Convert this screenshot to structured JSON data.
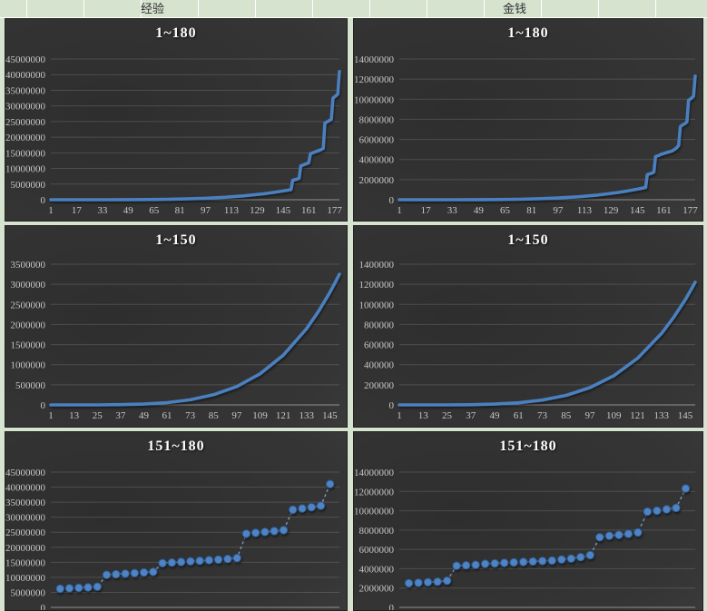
{
  "header": {
    "experience_label": "经验",
    "money_label": "金钱"
  },
  "style": {
    "sheet_background": "#d6e3cf",
    "sheet_gridline": "#ffffff",
    "chart_background_dark": "#303030",
    "gridline_color": "rgba(255,255,255,0.14)",
    "axis_line_color": "rgba(255,255,255,0.45)",
    "tick_text_color": "#c7c7c7",
    "title_color": "#ffffff",
    "line_color": "#4a80c0",
    "marker_fill": "#4f84c4",
    "marker_stroke": "#2f5c94",
    "dash_line_color": "#86a9d4"
  },
  "chart_data": [
    {
      "title": "1~180",
      "column": "经验",
      "type": "line",
      "xlim": [
        1,
        180
      ],
      "ylim": [
        0,
        45000000
      ],
      "x_ticks": [
        1,
        17,
        33,
        49,
        65,
        81,
        97,
        113,
        129,
        145,
        161,
        177
      ],
      "y_ticks": [
        0,
        5000000,
        10000000,
        15000000,
        20000000,
        25000000,
        30000000,
        35000000,
        40000000,
        45000000
      ],
      "x": [
        1,
        13,
        25,
        37,
        49,
        61,
        73,
        85,
        97,
        109,
        121,
        133,
        139,
        145,
        148,
        150,
        151,
        152,
        153,
        154,
        155,
        156,
        157,
        158,
        159,
        160,
        161,
        162,
        163,
        164,
        165,
        166,
        167,
        168,
        169,
        170,
        171,
        172,
        173,
        174,
        175,
        176,
        177,
        178,
        179,
        180
      ],
      "y": [
        0,
        100,
        1000,
        6000,
        21000,
        57000,
        127000,
        252000,
        457000,
        772000,
        1236000,
        1892000,
        2310000,
        2790000,
        3060000,
        3250000,
        6200000,
        6350000,
        6500000,
        6650000,
        6850000,
        10800000,
        11000000,
        11200000,
        11400000,
        11600000,
        11800000,
        14700000,
        14900000,
        15100000,
        15300000,
        15500000,
        15700000,
        15900000,
        16100000,
        16400000,
        24500000,
        24800000,
        25100000,
        25400000,
        25700000,
        32500000,
        32900000,
        33300000,
        33800000,
        41000000
      ]
    },
    {
      "title": "1~180",
      "column": "金钱",
      "type": "line",
      "xlim": [
        1,
        180
      ],
      "ylim": [
        0,
        14000000
      ],
      "x_ticks": [
        1,
        17,
        33,
        49,
        65,
        81,
        97,
        113,
        129,
        145,
        161,
        177
      ],
      "y_ticks": [
        0,
        2000000,
        4000000,
        6000000,
        8000000,
        10000000,
        12000000,
        14000000
      ],
      "x": [
        1,
        13,
        25,
        37,
        49,
        61,
        73,
        85,
        97,
        109,
        121,
        133,
        139,
        145,
        148,
        150,
        151,
        152,
        153,
        154,
        155,
        156,
        157,
        158,
        159,
        160,
        161,
        162,
        163,
        164,
        165,
        166,
        167,
        168,
        169,
        170,
        171,
        172,
        173,
        174,
        175,
        176,
        177,
        178,
        179,
        180
      ],
      "y": [
        0,
        50,
        400,
        2200,
        7900,
        21000,
        48000,
        95000,
        172000,
        290000,
        464000,
        710000,
        866000,
        1047000,
        1148000,
        1220000,
        2500000,
        2550000,
        2600000,
        2650000,
        2750000,
        4300000,
        4350000,
        4400000,
        4500000,
        4550000,
        4600000,
        4650000,
        4700000,
        4750000,
        4800000,
        4850000,
        4950000,
        5050000,
        5200000,
        5400000,
        7250000,
        7400000,
        7500000,
        7600000,
        7750000,
        9900000,
        10000000,
        10150000,
        10300000,
        12300000
      ]
    },
    {
      "title": "1~150",
      "column": "经验",
      "type": "line",
      "xlim": [
        1,
        150
      ],
      "ylim": [
        0,
        3500000
      ],
      "x_ticks": [
        1,
        13,
        25,
        37,
        49,
        61,
        73,
        85,
        97,
        109,
        121,
        133,
        145
      ],
      "y_ticks": [
        0,
        500000,
        1000000,
        1500000,
        2000000,
        2500000,
        3000000,
        3500000
      ],
      "x": [
        1,
        13,
        25,
        37,
        49,
        61,
        73,
        85,
        97,
        109,
        121,
        133,
        139,
        145,
        148,
        150
      ],
      "y": [
        0,
        100,
        1000,
        6000,
        21000,
        57000,
        127000,
        252000,
        457000,
        772000,
        1236000,
        1892000,
        2310000,
        2790000,
        3060000,
        3250000
      ]
    },
    {
      "title": "1~150",
      "column": "金钱",
      "type": "line",
      "xlim": [
        1,
        150
      ],
      "ylim": [
        0,
        1400000
      ],
      "x_ticks": [
        1,
        13,
        25,
        37,
        49,
        61,
        73,
        85,
        97,
        109,
        121,
        133,
        145
      ],
      "y_ticks": [
        0,
        200000,
        400000,
        600000,
        800000,
        1000000,
        1200000,
        1400000
      ],
      "x": [
        1,
        13,
        25,
        37,
        49,
        61,
        73,
        85,
        97,
        109,
        121,
        133,
        139,
        145,
        148,
        150
      ],
      "y": [
        0,
        50,
        400,
        2200,
        7900,
        21000,
        48000,
        95000,
        172000,
        290000,
        464000,
        710000,
        866000,
        1047000,
        1148000,
        1220000
      ]
    },
    {
      "title": "151~180",
      "column": "经验",
      "type": "scatter",
      "xlim": [
        150,
        181
      ],
      "ylim": [
        0,
        45000000
      ],
      "x_ticks": [],
      "y_ticks": [
        0,
        5000000,
        10000000,
        15000000,
        20000000,
        25000000,
        30000000,
        35000000,
        40000000,
        45000000
      ],
      "x": [
        151,
        152,
        153,
        154,
        155,
        156,
        157,
        158,
        159,
        160,
        161,
        162,
        163,
        164,
        165,
        166,
        167,
        168,
        169,
        170,
        171,
        172,
        173,
        174,
        175,
        176,
        177,
        178,
        179,
        180
      ],
      "y": [
        6200000,
        6350000,
        6500000,
        6650000,
        6850000,
        10800000,
        11000000,
        11200000,
        11400000,
        11600000,
        11800000,
        14700000,
        14900000,
        15100000,
        15300000,
        15500000,
        15700000,
        15900000,
        16100000,
        16400000,
        24500000,
        24800000,
        25100000,
        25400000,
        25700000,
        32500000,
        32900000,
        33300000,
        33800000,
        41000000
      ]
    },
    {
      "title": "151~180",
      "column": "金钱",
      "type": "scatter",
      "xlim": [
        150,
        181
      ],
      "ylim": [
        0,
        14000000
      ],
      "x_ticks": [],
      "y_ticks": [
        0,
        2000000,
        4000000,
        6000000,
        8000000,
        10000000,
        12000000,
        14000000
      ],
      "x": [
        151,
        152,
        153,
        154,
        155,
        156,
        157,
        158,
        159,
        160,
        161,
        162,
        163,
        164,
        165,
        166,
        167,
        168,
        169,
        170,
        171,
        172,
        173,
        174,
        175,
        176,
        177,
        178,
        179,
        180
      ],
      "y": [
        2500000,
        2550000,
        2600000,
        2650000,
        2750000,
        4300000,
        4350000,
        4400000,
        4500000,
        4550000,
        4600000,
        4650000,
        4700000,
        4750000,
        4800000,
        4850000,
        4950000,
        5050000,
        5200000,
        5400000,
        7250000,
        7400000,
        7500000,
        7600000,
        7750000,
        9900000,
        10000000,
        10150000,
        10300000,
        12300000
      ]
    }
  ]
}
